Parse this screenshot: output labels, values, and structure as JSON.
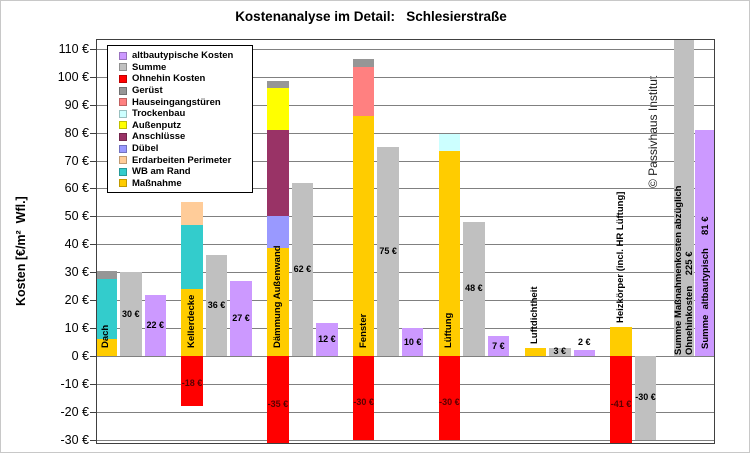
{
  "title": "Kostenanalyse im Detail:   Schlesierstraße",
  "copyright": "© Passivhaus Institut",
  "y_axis": {
    "title": "Kosten [€/m²  Wfl.]",
    "tick_min": -30,
    "tick_max": 110,
    "tick_step": 10,
    "tick_suffix": " €"
  },
  "chart_data": {
    "type": "bar",
    "title": "Kostenanalyse im Detail: Schlesierstraße",
    "ylabel": "Kosten [€/m² Wfl.]",
    "ylim": [
      -31.5,
      113.5
    ],
    "grid": true,
    "legend_position": "top-left",
    "series": [
      {
        "name": "altbautypische Kosten",
        "color": "#CC99FF"
      },
      {
        "name": "Summe",
        "color": "#C0C0C0"
      },
      {
        "name": "Ohnehin Kosten",
        "color": "#FF0000"
      },
      {
        "name": "Gerüst",
        "color": "#969696"
      },
      {
        "name": "Hauseingangstüren",
        "color": "#FF8080"
      },
      {
        "name": "Trockenbau",
        "color": "#CCFFFF"
      },
      {
        "name": "Außenputz",
        "color": "#FFFF00"
      },
      {
        "name": "Anschlüsse",
        "color": "#993366"
      },
      {
        "name": "Dübel",
        "color": "#9999FF"
      },
      {
        "name": "Erdarbeiten Perimeter",
        "color": "#FFCC99"
      },
      {
        "name": "WB am Rand",
        "color": "#33CCCC"
      },
      {
        "name": "Maßnahme",
        "color": "#FFCC00"
      }
    ],
    "groups": [
      {
        "label": "Dach",
        "label_pos": "inside",
        "segments": [
          {
            "series": "Maßnahme",
            "value": 6
          },
          {
            "series": "WB am Rand",
            "value": 21.5
          },
          {
            "series": "Gerüst",
            "value": 3
          }
        ],
        "ohnehin": null,
        "ohnehin_label": null,
        "summe": 30,
        "summe_label": "30 €",
        "altbau": 22,
        "altbau_label": "22 €",
        "altbau_label_pos": "mid"
      },
      {
        "label": "Kellerdecke",
        "label_pos": "inside",
        "segments": [
          {
            "series": "Maßnahme",
            "value": 24
          },
          {
            "series": "WB am Rand",
            "value": 23
          },
          {
            "series": "Erdarbeiten Perimeter",
            "value": 8
          }
        ],
        "ohnehin": -18,
        "ohnehin_label": "-18 €",
        "summe": 36,
        "summe_label": "36 €",
        "altbau": 27,
        "altbau_label": "27 €",
        "altbau_label_pos": "mid"
      },
      {
        "label": "Dämmung Außenwand",
        "label_pos": "inside",
        "segments": [
          {
            "series": "Maßnahme",
            "value": 38.5
          },
          {
            "series": "Dübel",
            "value": 11.5
          },
          {
            "series": "Anschlüsse",
            "value": 31
          },
          {
            "series": "Außenputz",
            "value": 15
          },
          {
            "series": "Gerüst",
            "value": 2.5
          }
        ],
        "ohnehin": -35,
        "ohnehin_label": "-35 €",
        "summe": 62,
        "summe_label": "62 €",
        "altbau": 12,
        "altbau_label": "12 €",
        "altbau_label_pos": "mid"
      },
      {
        "label": "Fenster",
        "label_pos": "inside",
        "segments": [
          {
            "series": "Maßnahme",
            "value": 86
          },
          {
            "series": "Hauseingangstüren",
            "value": 17.5
          },
          {
            "series": "Gerüst",
            "value": 3
          }
        ],
        "ohnehin": -30,
        "ohnehin_label": "-30 €",
        "summe": 75,
        "summe_label": "75 €",
        "altbau": 10,
        "altbau_label": "10 €",
        "altbau_label_pos": "mid"
      },
      {
        "label": "Lüftung",
        "label_pos": "inside",
        "segments": [
          {
            "series": "Maßnahme",
            "value": 73.5
          },
          {
            "series": "Trockenbau",
            "value": 6
          }
        ],
        "ohnehin": -30,
        "ohnehin_label": "-30 €",
        "summe": 48,
        "summe_label": "48 €",
        "altbau": 7,
        "altbau_label": "7 €",
        "altbau_label_pos": "mid"
      },
      {
        "label": "Luftdichtheit",
        "label_pos": "above",
        "segments": [
          {
            "series": "Maßnahme",
            "value": 3
          }
        ],
        "ohnehin": null,
        "ohnehin_label": null,
        "summe": 3,
        "summe_label": "3 €",
        "altbau": 2,
        "altbau_label": "2 €",
        "altbau_label_pos": "above"
      },
      {
        "label": "Heizkörper (incl. HR Lüftung]",
        "label_pos": "above",
        "segments": [
          {
            "series": "Maßnahme",
            "value": 10.5
          }
        ],
        "ohnehin": -41,
        "ohnehin_label": "-41 €",
        "summe": -30,
        "summe_label": "-30 €",
        "altbau": null,
        "altbau_label": null,
        "altbau_label_pos": "mid"
      }
    ],
    "summary": {
      "summe_value": 225,
      "summe_label_lines": [
        "Summe Maßnahmenkosten abzüglich",
        "Ohnehinkosten    225 €"
      ],
      "altbau_value": 81,
      "altbau_label": "Summe  altbautypisch     81 €"
    }
  }
}
